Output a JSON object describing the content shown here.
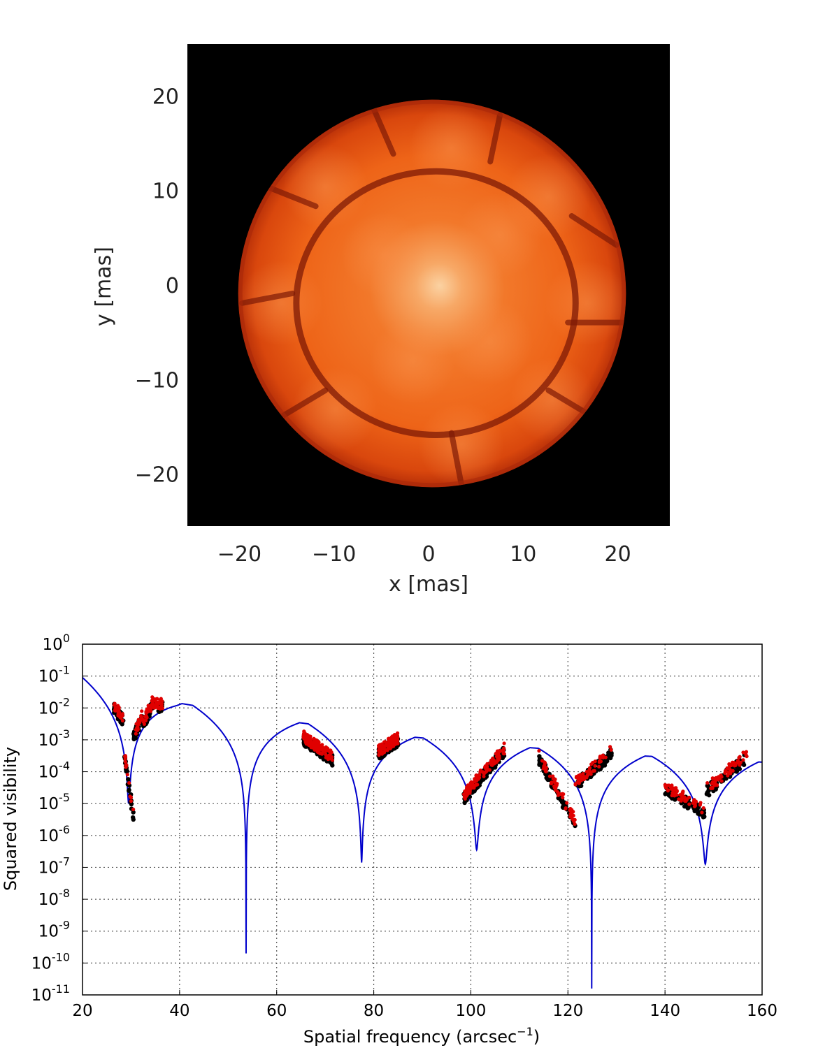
{
  "chart_data": [
    {
      "type": "heatmap",
      "xlabel": "x [mas]",
      "ylabel": "y [mas]",
      "xlim": [
        -25.5,
        25.5
      ],
      "ylim": [
        -25.5,
        25.5
      ],
      "xticks": [
        "−20",
        "−10",
        "0",
        "10",
        "20"
      ],
      "xtick_values": [
        -20,
        -10,
        0,
        10,
        20
      ],
      "yticks": [
        "20",
        "10",
        "0",
        "−10",
        "−20"
      ],
      "ytick_values": [
        20,
        10,
        0,
        -10,
        -20
      ],
      "colors": {
        "background": "#000000",
        "disk_center": "#fbd2a2",
        "disk_mid": "#f26a1c",
        "disk_edge": "#b52e08",
        "lanes": "#7e1a05"
      },
      "disk_radius": 20.5
    },
    {
      "type": "scatter",
      "xlabel": "Spatial frequency (arcsec",
      "xlabel_sup": "−1",
      "xlabel_end": ")",
      "ylabel": "Squared visibility",
      "xlim": [
        20,
        160
      ],
      "ylim_log10": [
        -11,
        0
      ],
      "xticks": [
        20,
        40,
        60,
        80,
        100,
        120,
        140,
        160
      ],
      "yticks": [
        {
          "base": "10",
          "exp": "0"
        },
        {
          "base": "10",
          "exp": "-1"
        },
        {
          "base": "10",
          "exp": "-2"
        },
        {
          "base": "10",
          "exp": "-3"
        },
        {
          "base": "10",
          "exp": "-4"
        },
        {
          "base": "10",
          "exp": "-5"
        },
        {
          "base": "10",
          "exp": "-6"
        },
        {
          "base": "10",
          "exp": "-7"
        },
        {
          "base": "10",
          "exp": "-8"
        },
        {
          "base": "10",
          "exp": "-9"
        },
        {
          "base": "10",
          "exp": "-10"
        },
        {
          "base": "10",
          "exp": "-11"
        }
      ],
      "grid": true,
      "colors": {
        "model": "#0000cc",
        "black_points": "#000000",
        "red_points": "#e00000"
      },
      "model_curve": {
        "nulls": [
          29.5,
          53.7,
          77.5,
          101.2,
          124.9,
          148.3
        ],
        "peaks": [
          [
            20,
            -0.92
          ],
          [
            39.5,
            -1.84
          ],
          [
            64.5,
            -2.46
          ],
          [
            88.5,
            -2.92
          ],
          [
            112.5,
            -3.25
          ],
          [
            136.0,
            -3.51
          ],
          [
            160,
            -3.7
          ]
        ],
        "null_depths_log10": [
          -5.0,
          -9.7,
          -6.85,
          -6.45,
          -10.8,
          -6.9
        ]
      },
      "point_groups": [
        {
          "x": [
            26.5,
            36.5
          ],
          "y_log10": [
            [
              -2.0,
              -2.35
            ],
            [
              -3.3,
              -5.4
            ],
            [
              -2.9,
              -2.2
            ],
            [
              -2.5,
              -1.85
            ],
            [
              -1.95,
              -1.9
            ]
          ]
        },
        {
          "x": [
            65.5,
            71.5
          ],
          "y_log10": [
            [
              -2.95,
              -3.6
            ]
          ]
        },
        {
          "x": [
            81.0,
            85.0
          ],
          "y_log10": [
            [
              -3.4,
              -3.0
            ]
          ]
        },
        {
          "x": [
            98.5,
            107.0
          ],
          "y_log10": [
            [
              -4.8,
              -3.3
            ]
          ]
        },
        {
          "x": [
            114.0,
            129.0
          ],
          "y_log10": [
            [
              -3.55,
              -5.6
            ],
            [
              -4.4,
              -3.4
            ]
          ]
        },
        {
          "x": [
            140.0,
            157.0
          ],
          "y_log10": [
            [
              -4.5,
              -5.3
            ],
            [
              -4.6,
              -3.5
            ]
          ]
        }
      ]
    }
  ]
}
